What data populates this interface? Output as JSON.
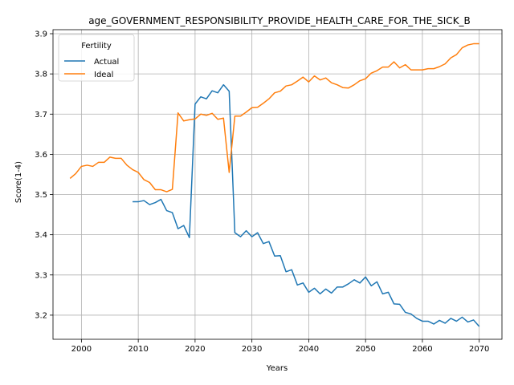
{
  "chart_data": {
    "type": "line",
    "title": "age_GOVERNMENT_RESPONSIBILITY_PROVIDE_HEALTH_CARE_FOR_THE_SICK_B",
    "xlabel": "Years",
    "ylabel": "Score(1-4)",
    "xlim": [
      1995,
      2074
    ],
    "ylim": [
      3.14,
      3.91
    ],
    "xticks": [
      2000,
      2010,
      2020,
      2030,
      2040,
      2050,
      2060,
      2070
    ],
    "yticks": [
      3.2,
      3.3,
      3.4,
      3.5,
      3.6,
      3.7,
      3.8,
      3.9
    ],
    "grid": true,
    "legend": {
      "title": "Fertility",
      "placement": "top-left"
    },
    "series": [
      {
        "name": "Actual",
        "color": "#1f77b4",
        "x": [
          2009,
          2010,
          2011,
          2012,
          2013,
          2014,
          2015,
          2016,
          2017,
          2018,
          2019,
          2020,
          2021,
          2022,
          2023,
          2024,
          2025,
          2026,
          2027,
          2028,
          2029,
          2030,
          2031,
          2032,
          2033,
          2034,
          2035,
          2036,
          2037,
          2038,
          2039,
          2040,
          2041,
          2042,
          2043,
          2044,
          2045,
          2046,
          2047,
          2048,
          2049,
          2050,
          2051,
          2052,
          2053,
          2054,
          2055,
          2056,
          2057,
          2058,
          2059,
          2060,
          2061,
          2062,
          2063,
          2064,
          2065,
          2066,
          2067,
          2068,
          2069,
          2070
        ],
        "values": [
          3.482,
          3.482,
          3.485,
          3.475,
          3.48,
          3.488,
          3.46,
          3.455,
          3.415,
          3.423,
          3.393,
          3.725,
          3.743,
          3.738,
          3.758,
          3.753,
          3.773,
          3.757,
          3.405,
          3.395,
          3.41,
          3.395,
          3.405,
          3.378,
          3.383,
          3.347,
          3.348,
          3.308,
          3.313,
          3.275,
          3.28,
          3.257,
          3.267,
          3.253,
          3.265,
          3.255,
          3.27,
          3.27,
          3.278,
          3.288,
          3.28,
          3.295,
          3.273,
          3.283,
          3.253,
          3.257,
          3.228,
          3.227,
          3.207,
          3.203,
          3.192,
          3.185,
          3.185,
          3.178,
          3.187,
          3.18,
          3.192,
          3.185,
          3.195,
          3.183,
          3.188,
          3.172
        ]
      },
      {
        "name": "Ideal",
        "color": "#ff7f0e",
        "x": [
          1998,
          1999,
          2000,
          2001,
          2002,
          2003,
          2004,
          2005,
          2006,
          2007,
          2008,
          2009,
          2010,
          2011,
          2012,
          2013,
          2014,
          2015,
          2016,
          2017,
          2018,
          2019,
          2020,
          2021,
          2022,
          2023,
          2024,
          2025,
          2026,
          2027,
          2028,
          2029,
          2030,
          2031,
          2032,
          2033,
          2034,
          2035,
          2036,
          2037,
          2038,
          2039,
          2040,
          2041,
          2042,
          2043,
          2044,
          2045,
          2046,
          2047,
          2048,
          2049,
          2050,
          2051,
          2052,
          2053,
          2054,
          2055,
          2056,
          2057,
          2058,
          2059,
          2060,
          2061,
          2062,
          2063,
          2064,
          2065,
          2066,
          2067,
          2068,
          2069,
          2070
        ],
        "values": [
          3.54,
          3.552,
          3.57,
          3.573,
          3.57,
          3.58,
          3.58,
          3.593,
          3.59,
          3.59,
          3.573,
          3.562,
          3.555,
          3.537,
          3.53,
          3.512,
          3.512,
          3.507,
          3.513,
          3.703,
          3.683,
          3.686,
          3.688,
          3.7,
          3.697,
          3.702,
          3.687,
          3.69,
          3.555,
          3.695,
          3.695,
          3.705,
          3.716,
          3.717,
          3.727,
          3.738,
          3.753,
          3.757,
          3.77,
          3.773,
          3.782,
          3.792,
          3.78,
          3.795,
          3.785,
          3.79,
          3.778,
          3.773,
          3.766,
          3.765,
          3.773,
          3.783,
          3.788,
          3.802,
          3.808,
          3.817,
          3.817,
          3.83,
          3.815,
          3.823,
          3.81,
          3.81,
          3.81,
          3.813,
          3.813,
          3.818,
          3.825,
          3.84,
          3.848,
          3.865,
          3.872,
          3.875,
          3.875
        ]
      }
    ]
  }
}
